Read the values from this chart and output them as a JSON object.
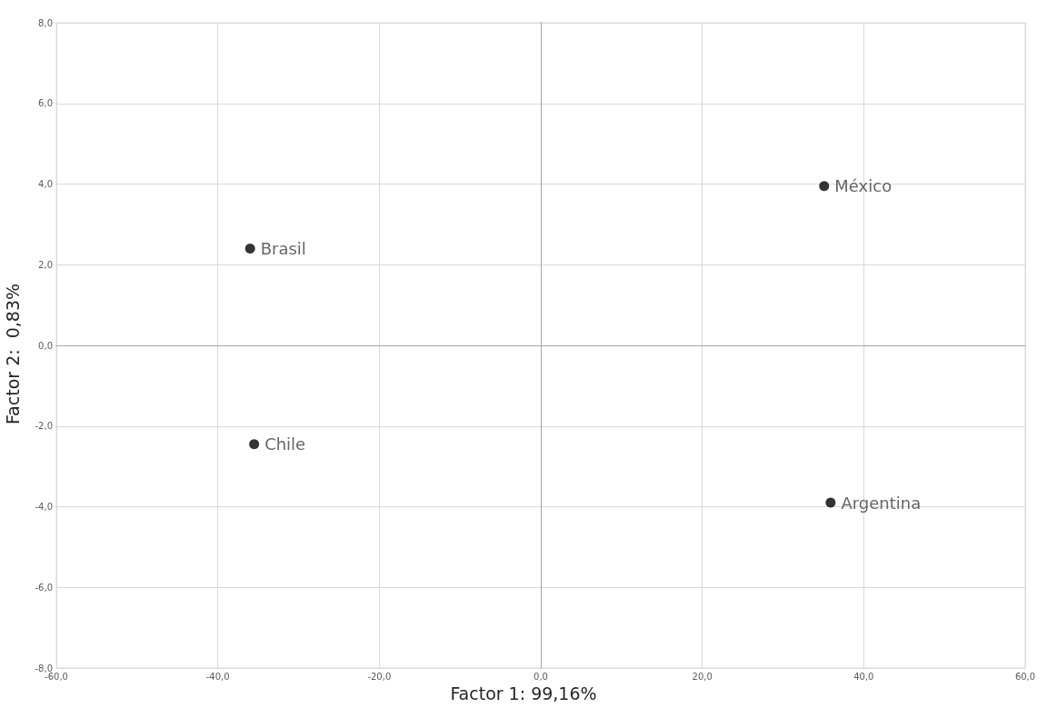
{
  "chart_data": {
    "type": "scatter",
    "xlabel": "Factor 1: 99,16%",
    "ylabel": "Factor 2:  0,83%",
    "series": [
      {
        "name": "Brasil",
        "color": "#000000",
        "x": [
          -36.0
        ],
        "values": [
          2.4
        ]
      },
      {
        "name": "Chile",
        "color": "#000000",
        "x": [
          -35.5
        ],
        "values": [
          -2.45
        ]
      },
      {
        "name": "México",
        "color": "#000000",
        "x": [
          35.1
        ],
        "values": [
          3.95
        ]
      },
      {
        "name": "Argentina",
        "color": "#000000",
        "x": [
          35.9
        ],
        "values": [
          -3.9
        ]
      }
    ],
    "xlim": [
      -60,
      60
    ],
    "xticks": [
      {
        "value": -60,
        "label": "-60,0"
      },
      {
        "value": -40,
        "label": "-40,0"
      },
      {
        "value": -20,
        "label": "-20,0"
      },
      {
        "value": 0,
        "label": "0,0"
      },
      {
        "value": 20,
        "label": "20,0"
      },
      {
        "value": 40,
        "label": "40,0"
      },
      {
        "value": 60,
        "label": "60,0"
      }
    ],
    "ylim": [
      -8,
      8
    ],
    "yticks": [
      {
        "value": -8,
        "label": "-8,0"
      },
      {
        "value": -6,
        "label": "-6,0"
      },
      {
        "value": -4,
        "label": "-4,0"
      },
      {
        "value": -2,
        "label": "-2,0"
      },
      {
        "value": 0,
        "label": "0,0"
      },
      {
        "value": 2,
        "label": "2,0"
      },
      {
        "value": 4,
        "label": "4,0"
      },
      {
        "value": 6,
        "label": "6,0"
      },
      {
        "value": 8,
        "label": "8,0"
      }
    ],
    "grid": true,
    "legend": false,
    "marker": "circle"
  }
}
